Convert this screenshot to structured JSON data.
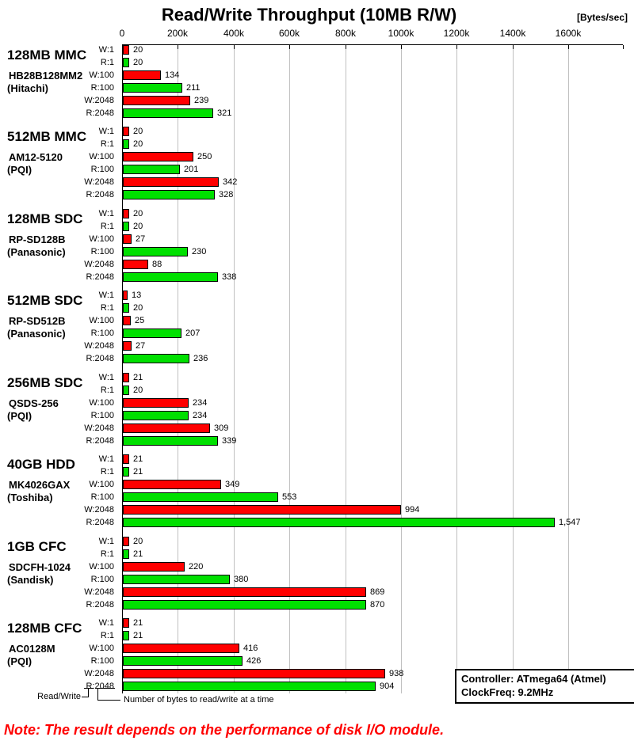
{
  "chart_data": {
    "type": "bar",
    "orientation": "horizontal",
    "title": "Read/Write Throughput (10MB R/W)",
    "unit_label": "[Bytes/sec]",
    "x_axis": {
      "tick_labels": [
        "0",
        "200k",
        "400k",
        "600k",
        "800k",
        "1000k",
        "1200k",
        "1400k",
        "1600k"
      ],
      "tick_values_kbytes_per_sec": [
        0,
        200,
        400,
        600,
        800,
        1000,
        1200,
        1400,
        1600
      ],
      "range_kbytes_per_sec": [
        0,
        1790
      ],
      "gridlines": true,
      "legend_position": "bottom-right"
    },
    "row_labels": [
      "W:1",
      "R:1",
      "W:100",
      "R:100",
      "W:2048",
      "R:2048"
    ],
    "colors": {
      "write_bar": "#ff0000",
      "read_bar": "#00e000",
      "gridline": "#c0c0c0",
      "axis": "#000000",
      "note_text": "#ff0000"
    },
    "groups": [
      {
        "name": "128MB MMC",
        "model": "HB28B128MM2",
        "brand": "(Hitachi)",
        "values_k": [
          20,
          20,
          134,
          211,
          239,
          321
        ],
        "value_labels": [
          "20",
          "20",
          "134",
          "211",
          "239",
          "321"
        ]
      },
      {
        "name": "512MB MMC",
        "model": "AM12-5120",
        "brand": "(PQI)",
        "values_k": [
          20,
          20,
          250,
          201,
          342,
          328
        ],
        "value_labels": [
          "20",
          "20",
          "250",
          "201",
          "342",
          "328"
        ]
      },
      {
        "name": "128MB SDC",
        "model": "RP-SD128B",
        "brand": "(Panasonic)",
        "values_k": [
          20,
          20,
          27,
          230,
          88,
          338
        ],
        "value_labels": [
          "20",
          "20",
          "27",
          "230",
          "88",
          "338"
        ]
      },
      {
        "name": "512MB SDC",
        "model": "RP-SD512B",
        "brand": "(Panasonic)",
        "values_k": [
          13,
          20,
          25,
          207,
          27,
          236
        ],
        "value_labels": [
          "13",
          "20",
          "25",
          "207",
          "27",
          "236"
        ]
      },
      {
        "name": "256MB SDC",
        "model": "QSDS-256",
        "brand": "(PQI)",
        "values_k": [
          21,
          20,
          234,
          234,
          309,
          339
        ],
        "value_labels": [
          "21",
          "20",
          "234",
          "234",
          "309",
          "339"
        ]
      },
      {
        "name": "40GB HDD",
        "model": "MK4026GAX",
        "brand": "(Toshiba)",
        "values_k": [
          21,
          21,
          349,
          553,
          994,
          1547
        ],
        "value_labels": [
          "21",
          "21",
          "349",
          "553",
          "994",
          "1,547"
        ]
      },
      {
        "name": "1GB CFC",
        "model": "SDCFH-1024",
        "brand": "(Sandisk)",
        "values_k": [
          20,
          21,
          220,
          380,
          869,
          870
        ],
        "value_labels": [
          "20",
          "21",
          "220",
          "380",
          "869",
          "870"
        ]
      },
      {
        "name": "128MB CFC",
        "model": "AC0128M",
        "brand": "(PQI)",
        "values_k": [
          21,
          21,
          416,
          426,
          938,
          904
        ],
        "value_labels": [
          "21",
          "21",
          "416",
          "426",
          "938",
          "904"
        ]
      }
    ],
    "legend": {
      "controller": "Controller: ATmega64 (Atmel)",
      "clock_freq": "ClockFreq: 9.2MHz"
    },
    "annotations": {
      "read_write": "Read/Write",
      "bytes_at_a_time": "Number of bytes to read/write at a time"
    },
    "note": "Note: The result depends on the performance of disk I/O module."
  }
}
